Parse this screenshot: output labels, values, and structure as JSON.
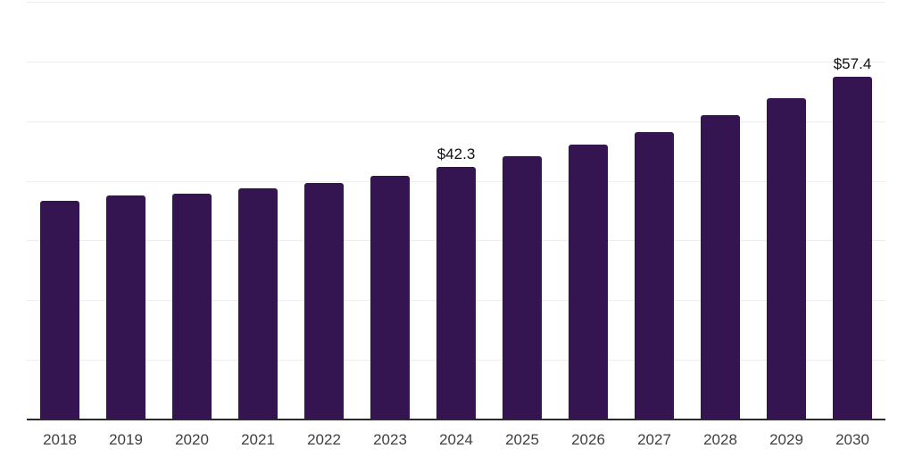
{
  "chart_data": {
    "type": "bar",
    "categories": [
      "2018",
      "2019",
      "2020",
      "2021",
      "2022",
      "2023",
      "2024",
      "2025",
      "2026",
      "2027",
      "2028",
      "2029",
      "2030"
    ],
    "values": [
      36.7,
      37.6,
      37.9,
      38.7,
      39.6,
      40.9,
      42.3,
      44.1,
      46.0,
      48.2,
      51.0,
      53.9,
      57.4
    ],
    "data_labels": [
      {
        "category": "2024",
        "text": "$42.3"
      },
      {
        "category": "2030",
        "text": "$57.4"
      }
    ],
    "title": "",
    "xlabel": "",
    "ylabel": "",
    "ylim": [
      0,
      70
    ],
    "grid_step": 10,
    "grid": true,
    "legend": false,
    "colors": {
      "bar": "#341551",
      "gridline": "#ededed",
      "axis": "#2b2b2b",
      "data_label": "#111111",
      "tick_label": "#404040",
      "background": "#ffffff"
    }
  }
}
